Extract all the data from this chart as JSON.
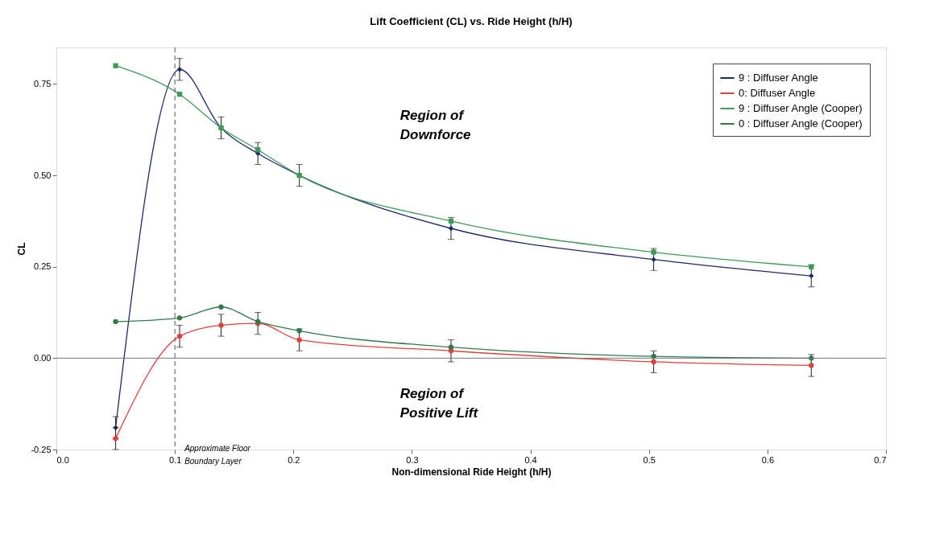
{
  "chart_data": {
    "type": "line",
    "title": "Lift Coefficient (CL) vs. Ride Height (h/H)",
    "xlabel": "Non-dimensional Ride Height (h/H)",
    "ylabel": "CL",
    "x": [
      0.05,
      0.104,
      0.139,
      0.17,
      0.205,
      0.333,
      0.504,
      0.637
    ],
    "series": [
      {
        "name": "9 : Diffuser Angle",
        "color": "#1f2a6b",
        "marker": "diamond",
        "values": [
          -0.19,
          0.79,
          0.63,
          0.56,
          0.5,
          0.355,
          0.27,
          0.225
        ],
        "errors": [
          0.03,
          0.03,
          0.03,
          0.03,
          0.03,
          0.03,
          0.03,
          0.03
        ]
      },
      {
        "name": "0: Diffuser Angle",
        "color": "#e0403a",
        "marker": "circle",
        "values": [
          -0.22,
          0.06,
          0.09,
          0.095,
          0.05,
          0.02,
          -0.01,
          -0.02
        ],
        "errors": [
          0.03,
          0.03,
          0.03,
          0.03,
          0.03,
          0.03,
          0.03,
          0.03
        ]
      },
      {
        "name": "9 : Diffuser Angle (Cooper)",
        "color": "#3f9a5a",
        "marker": "square",
        "values": [
          0.8,
          0.722,
          0.63,
          0.57,
          0.5,
          0.375,
          0.29,
          0.25
        ]
      },
      {
        "name": "0 : Diffuser Angle (Cooper)",
        "color": "#2f7a4a",
        "marker": "circle",
        "values": [
          0.1,
          0.11,
          0.14,
          0.1,
          0.075,
          0.03,
          0.005,
          0.0
        ]
      }
    ],
    "xlim": [
      0,
      0.7
    ],
    "xticks": [
      {
        "value": 0,
        "label": "0.0"
      },
      0.1,
      0.2,
      0.3,
      0.4,
      0.5,
      0.6,
      0.7
    ],
    "ylim": [
      -0.25,
      0.85
    ],
    "yticks": [
      -0.25,
      {
        "value": 0,
        "label": "0.00"
      },
      0.25,
      {
        "value": 0.5,
        "label": "0.50"
      },
      0.75
    ],
    "ref_lines": [
      {
        "axis": "x",
        "value": 0.1,
        "label": "Approximate Floor Boundary Layer",
        "line_style": "dashed",
        "color": "#555555"
      },
      {
        "axis": "y",
        "value": 0,
        "color": "#777777",
        "line_style": "solid"
      }
    ],
    "annotations": [
      "Region of Downforce",
      "Region of Positive Lift"
    ],
    "grid": false,
    "legend": "top right"
  }
}
